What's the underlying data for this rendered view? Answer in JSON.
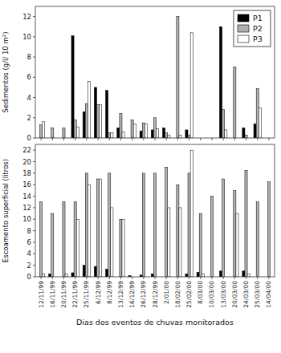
{
  "chart_data": [
    {
      "type": "bar",
      "ylabel": "Sedimentos (g/l/ 10 m²)",
      "categories": [
        "12/11/99",
        "16/11/99",
        "20/11/99",
        "22/11/99",
        "25/11/99",
        "6/12/99",
        "8/12/99",
        "13/12/99",
        "16/12/99",
        "26/12/99",
        "28/12/99",
        "2/01/00",
        "18/02/00",
        "25/02/00",
        "8/03/00",
        "10/03/00",
        "13/03/00",
        "20/03/00",
        "24/03/00",
        "25/03/00",
        "14/04/00"
      ],
      "series": [
        {
          "name": "P1",
          "color": "#000000",
          "values": [
            0.0,
            0.0,
            0.0,
            10.1,
            2.6,
            5.0,
            4.7,
            1.0,
            0.0,
            0.7,
            0.8,
            1.0,
            0.0,
            0.8,
            0.0,
            0.0,
            11.0,
            0.0,
            1.0,
            1.4,
            0.0
          ]
        },
        {
          "name": "P2",
          "color": "#b0b0b0",
          "values": [
            1.3,
            1.0,
            1.0,
            1.8,
            3.4,
            3.3,
            0.5,
            2.4,
            1.8,
            1.5,
            2.0,
            0.5,
            12.0,
            0.3,
            0.0,
            0.0,
            2.8,
            7.0,
            0.3,
            4.9,
            0.0
          ]
        },
        {
          "name": "P3",
          "color": "#ffffff",
          "values": [
            1.6,
            0.0,
            0.0,
            1.1,
            5.6,
            3.3,
            0.5,
            0.6,
            1.4,
            1.4,
            0.9,
            0.3,
            0.3,
            10.4,
            0.0,
            0.0,
            0.8,
            0.0,
            0.0,
            3.0,
            0.0
          ]
        }
      ],
      "ylim": [
        0,
        13
      ],
      "yticks": [
        0,
        2,
        4,
        6,
        8,
        10,
        12
      ],
      "grid": false,
      "legend": "upper right",
      "tick_labels": "y"
    },
    {
      "type": "bar",
      "xlabel": "Dias dos eventos de chuvas monitorados",
      "ylabel": "Escoamento superficial (litros)",
      "categories": [
        "12/11/99",
        "16/11/99",
        "20/11/99",
        "22/11/99",
        "25/11/99",
        "6/12/99",
        "8/12/99",
        "13/12/99",
        "16/12/99",
        "26/12/99",
        "28/12/99",
        "2/01/00",
        "18/02/00",
        "25/02/00",
        "8/03/00",
        "10/03/00",
        "13/03/00",
        "20/03/00",
        "24/03/00",
        "25/03/00",
        "14/04/00"
      ],
      "series": [
        {
          "color": "#000000",
          "values": [
            0.0,
            0.5,
            0.0,
            0.7,
            2.0,
            1.8,
            1.3,
            0.0,
            0.2,
            0.3,
            0.5,
            0.0,
            0.0,
            0.5,
            0.8,
            0.0,
            1.0,
            0.0,
            1.0,
            0.0,
            0.0
          ]
        },
        {
          "color": "#b0b0b0",
          "values": [
            13.0,
            11.0,
            13.0,
            13.0,
            18.0,
            17.0,
            18.0,
            10.0,
            0.0,
            18.0,
            18.0,
            19.0,
            16.0,
            18.0,
            11.0,
            14.0,
            17.0,
            15.0,
            18.5,
            13.0,
            16.5
          ]
        },
        {
          "color": "#ffffff",
          "values": [
            0.5,
            0.0,
            0.5,
            10.0,
            16.0,
            17.0,
            12.0,
            10.0,
            0.0,
            0.0,
            0.0,
            12.0,
            12.0,
            22.0,
            0.5,
            0.0,
            0.0,
            11.0,
            0.5,
            0.0,
            0.0
          ]
        }
      ],
      "ylim": [
        0,
        23
      ],
      "yticks": [
        0,
        2,
        4,
        6,
        8,
        10,
        12,
        14,
        16,
        18,
        20,
        22
      ],
      "grid": false
    }
  ]
}
